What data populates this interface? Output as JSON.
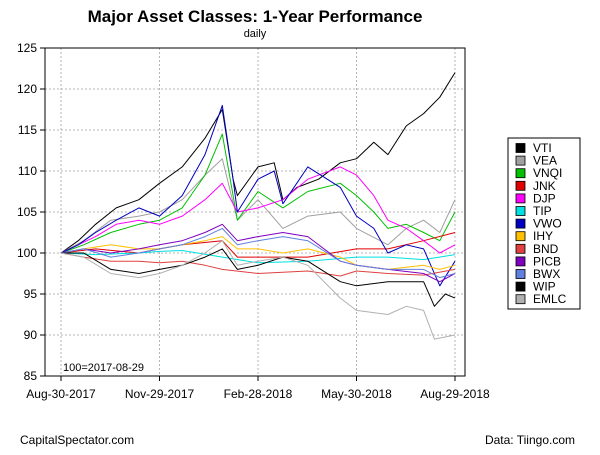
{
  "footer": {
    "left": "CapitalSpectator.com",
    "right": "Data: Tiingo.com"
  },
  "chart_data": {
    "type": "line",
    "title": "Major Asset Classes: 1-Year Performance",
    "subtitle": "daily",
    "annotation": "100=2017-08-29",
    "xlabel": "",
    "ylabel": "",
    "x_tick_labels": [
      "Aug-30-2017",
      "Nov-29-2017",
      "Feb-28-2018",
      "May-30-2018",
      "Aug-29-2018"
    ],
    "x_tick_dates": [
      "2017-08-30",
      "2017-11-29",
      "2018-02-28",
      "2018-05-30",
      "2018-08-29"
    ],
    "x_range": [
      "2017-08-30",
      "2018-08-29"
    ],
    "ylim": [
      85,
      125
    ],
    "y_ticks": [
      85,
      90,
      95,
      100,
      105,
      110,
      115,
      120,
      125
    ],
    "grid": true,
    "legend_position": "right",
    "series": [
      {
        "name": "VTI",
        "color": "#000000",
        "points": [
          [
            "2017-08-30",
            100
          ],
          [
            "2017-09-15",
            101.5
          ],
          [
            "2017-10-01",
            103.5
          ],
          [
            "2017-10-20",
            105.5
          ],
          [
            "2017-11-10",
            106.5
          ],
          [
            "2017-11-29",
            108.5
          ],
          [
            "2017-12-20",
            110.5
          ],
          [
            "2018-01-10",
            114
          ],
          [
            "2018-01-26",
            117.5
          ],
          [
            "2018-02-05",
            109
          ],
          [
            "2018-02-09",
            107
          ],
          [
            "2018-02-28",
            110.5
          ],
          [
            "2018-03-15",
            111
          ],
          [
            "2018-03-23",
            106.5
          ],
          [
            "2018-04-05",
            108
          ],
          [
            "2018-04-25",
            109
          ],
          [
            "2018-05-15",
            111
          ],
          [
            "2018-05-30",
            111.5
          ],
          [
            "2018-06-15",
            113.5
          ],
          [
            "2018-06-28",
            112
          ],
          [
            "2018-07-15",
            115.5
          ],
          [
            "2018-07-31",
            117
          ],
          [
            "2018-08-15",
            119
          ],
          [
            "2018-08-29",
            122
          ]
        ]
      },
      {
        "name": "VEA",
        "color": "#a0a0a0",
        "points": [
          [
            "2017-08-30",
            100
          ],
          [
            "2017-09-20",
            101.5
          ],
          [
            "2017-10-15",
            104
          ],
          [
            "2017-11-10",
            104.5
          ],
          [
            "2017-11-29",
            105
          ],
          [
            "2017-12-20",
            106.5
          ],
          [
            "2018-01-10",
            109.5
          ],
          [
            "2018-01-26",
            111.5
          ],
          [
            "2018-02-09",
            104
          ],
          [
            "2018-02-28",
            106.5
          ],
          [
            "2018-03-23",
            103
          ],
          [
            "2018-04-15",
            104.5
          ],
          [
            "2018-05-15",
            105
          ],
          [
            "2018-05-30",
            103
          ],
          [
            "2018-06-28",
            101
          ],
          [
            "2018-07-15",
            103
          ],
          [
            "2018-07-31",
            104
          ],
          [
            "2018-08-15",
            102.5
          ],
          [
            "2018-08-29",
            106.5
          ]
        ]
      },
      {
        "name": "VNQI",
        "color": "#00c000",
        "points": [
          [
            "2017-08-30",
            100
          ],
          [
            "2017-09-20",
            101
          ],
          [
            "2017-10-15",
            102.5
          ],
          [
            "2017-11-10",
            103.5
          ],
          [
            "2017-11-29",
            104
          ],
          [
            "2017-12-20",
            105.5
          ],
          [
            "2018-01-10",
            109.5
          ],
          [
            "2018-01-26",
            114.5
          ],
          [
            "2018-02-05",
            107
          ],
          [
            "2018-02-09",
            104
          ],
          [
            "2018-02-28",
            107.5
          ],
          [
            "2018-03-23",
            105.5
          ],
          [
            "2018-04-15",
            107.5
          ],
          [
            "2018-05-15",
            108.5
          ],
          [
            "2018-05-30",
            107
          ],
          [
            "2018-06-15",
            105
          ],
          [
            "2018-06-28",
            103
          ],
          [
            "2018-07-15",
            103.5
          ],
          [
            "2018-07-31",
            102.5
          ],
          [
            "2018-08-15",
            101.5
          ],
          [
            "2018-08-29",
            105
          ]
        ]
      },
      {
        "name": "JNK",
        "color": "#e00000",
        "points": [
          [
            "2017-08-30",
            100
          ],
          [
            "2017-10-01",
            100.5
          ],
          [
            "2017-11-10",
            100
          ],
          [
            "2017-11-29",
            100.5
          ],
          [
            "2017-12-20",
            101
          ],
          [
            "2018-01-26",
            101.5
          ],
          [
            "2018-02-09",
            99.5
          ],
          [
            "2018-02-28",
            99.5
          ],
          [
            "2018-04-15",
            99.5
          ],
          [
            "2018-05-30",
            100.5
          ],
          [
            "2018-06-28",
            100.5
          ],
          [
            "2018-07-31",
            101.5
          ],
          [
            "2018-08-29",
            102.5
          ]
        ]
      },
      {
        "name": "DJP",
        "color": "#ff00ff",
        "points": [
          [
            "2017-08-30",
            100
          ],
          [
            "2017-09-15",
            101
          ],
          [
            "2017-10-01",
            102
          ],
          [
            "2017-10-20",
            103.5
          ],
          [
            "2017-11-10",
            104
          ],
          [
            "2017-11-29",
            103.5
          ],
          [
            "2017-12-20",
            104.5
          ],
          [
            "2018-01-10",
            106.5
          ],
          [
            "2018-01-26",
            108.5
          ],
          [
            "2018-02-09",
            105
          ],
          [
            "2018-02-28",
            105.5
          ],
          [
            "2018-03-23",
            106.5
          ],
          [
            "2018-04-15",
            109
          ],
          [
            "2018-05-15",
            110.5
          ],
          [
            "2018-05-30",
            109.5
          ],
          [
            "2018-06-15",
            107
          ],
          [
            "2018-06-28",
            104
          ],
          [
            "2018-07-15",
            103
          ],
          [
            "2018-07-31",
            101.5
          ],
          [
            "2018-08-15",
            100
          ],
          [
            "2018-08-29",
            101
          ]
        ]
      },
      {
        "name": "TIP",
        "color": "#00e0e0",
        "points": [
          [
            "2017-08-30",
            100
          ],
          [
            "2017-10-01",
            99.8
          ],
          [
            "2017-11-10",
            100
          ],
          [
            "2017-11-29",
            100.2
          ],
          [
            "2017-12-20",
            100.3
          ],
          [
            "2018-01-26",
            99.5
          ],
          [
            "2018-02-28",
            98.8
          ],
          [
            "2018-04-15",
            99
          ],
          [
            "2018-05-30",
            99.5
          ],
          [
            "2018-06-28",
            99.5
          ],
          [
            "2018-07-31",
            99.2
          ],
          [
            "2018-08-29",
            99.8
          ]
        ]
      },
      {
        "name": "VWO",
        "color": "#0000c0",
        "points": [
          [
            "2017-08-30",
            100
          ],
          [
            "2017-09-15",
            101
          ],
          [
            "2017-10-01",
            102.5
          ],
          [
            "2017-10-20",
            104
          ],
          [
            "2017-11-10",
            105.5
          ],
          [
            "2017-11-29",
            104.5
          ],
          [
            "2017-12-20",
            107
          ],
          [
            "2018-01-10",
            112
          ],
          [
            "2018-01-26",
            118
          ],
          [
            "2018-02-05",
            109
          ],
          [
            "2018-02-09",
            105
          ],
          [
            "2018-02-28",
            109
          ],
          [
            "2018-03-15",
            110
          ],
          [
            "2018-03-23",
            106
          ],
          [
            "2018-04-15",
            110.5
          ],
          [
            "2018-05-15",
            108
          ],
          [
            "2018-05-30",
            104.5
          ],
          [
            "2018-06-15",
            103
          ],
          [
            "2018-06-28",
            100
          ],
          [
            "2018-07-15",
            101
          ],
          [
            "2018-07-31",
            100.5
          ],
          [
            "2018-08-15",
            96
          ],
          [
            "2018-08-29",
            99
          ]
        ]
      },
      {
        "name": "IHY",
        "color": "#ffc000",
        "points": [
          [
            "2017-08-30",
            100
          ],
          [
            "2017-09-20",
            100.5
          ],
          [
            "2017-10-15",
            101
          ],
          [
            "2017-11-10",
            100.5
          ],
          [
            "2017-11-29",
            100.5
          ],
          [
            "2017-12-20",
            101
          ],
          [
            "2018-01-10",
            101.5
          ],
          [
            "2018-01-26",
            102
          ],
          [
            "2018-02-09",
            100.5
          ],
          [
            "2018-02-28",
            100.5
          ],
          [
            "2018-03-23",
            100
          ],
          [
            "2018-04-15",
            100.5
          ],
          [
            "2018-05-15",
            99.5
          ],
          [
            "2018-05-30",
            98.5
          ],
          [
            "2018-06-28",
            98
          ],
          [
            "2018-07-31",
            98.5
          ],
          [
            "2018-08-15",
            98
          ],
          [
            "2018-08-29",
            98.5
          ]
        ]
      },
      {
        "name": "BND",
        "color": "#e04040",
        "points": [
          [
            "2017-08-30",
            100
          ],
          [
            "2017-09-20",
            99.5
          ],
          [
            "2017-10-15",
            99
          ],
          [
            "2017-11-10",
            99
          ],
          [
            "2017-11-29",
            98.8
          ],
          [
            "2017-12-20",
            99
          ],
          [
            "2018-01-10",
            98.5
          ],
          [
            "2018-01-26",
            98
          ],
          [
            "2018-02-28",
            97.5
          ],
          [
            "2018-04-15",
            97.8
          ],
          [
            "2018-05-15",
            97.2
          ],
          [
            "2018-05-30",
            97.8
          ],
          [
            "2018-06-28",
            97.5
          ],
          [
            "2018-07-31",
            97.3
          ],
          [
            "2018-08-29",
            98
          ]
        ]
      },
      {
        "name": "PICB",
        "color": "#8000c0",
        "points": [
          [
            "2017-08-30",
            100
          ],
          [
            "2017-09-20",
            100.5
          ],
          [
            "2017-10-15",
            100
          ],
          [
            "2017-11-10",
            100.5
          ],
          [
            "2017-11-29",
            101
          ],
          [
            "2017-12-20",
            101.5
          ],
          [
            "2018-01-10",
            102.5
          ],
          [
            "2018-01-26",
            103.5
          ],
          [
            "2018-02-09",
            101.5
          ],
          [
            "2018-02-28",
            102
          ],
          [
            "2018-03-23",
            102.5
          ],
          [
            "2018-04-15",
            102
          ],
          [
            "2018-05-15",
            99
          ],
          [
            "2018-05-30",
            98.5
          ],
          [
            "2018-06-28",
            98
          ],
          [
            "2018-07-31",
            97.5
          ],
          [
            "2018-08-15",
            96.5
          ],
          [
            "2018-08-29",
            97.5
          ]
        ]
      },
      {
        "name": "BWX",
        "color": "#6080e0",
        "points": [
          [
            "2017-08-30",
            100
          ],
          [
            "2017-09-20",
            100.5
          ],
          [
            "2017-10-15",
            99.5
          ],
          [
            "2017-11-10",
            100
          ],
          [
            "2017-11-29",
            100.5
          ],
          [
            "2017-12-20",
            101
          ],
          [
            "2018-01-10",
            102
          ],
          [
            "2018-01-26",
            103
          ],
          [
            "2018-02-09",
            101
          ],
          [
            "2018-02-28",
            101.5
          ],
          [
            "2018-03-23",
            102
          ],
          [
            "2018-04-15",
            101.5
          ],
          [
            "2018-05-15",
            99
          ],
          [
            "2018-05-30",
            98.5
          ],
          [
            "2018-06-28",
            98
          ],
          [
            "2018-07-31",
            98
          ],
          [
            "2018-08-15",
            97
          ],
          [
            "2018-08-29",
            97.5
          ]
        ]
      },
      {
        "name": "WIP",
        "color": "#000000",
        "points": [
          [
            "2017-08-30",
            100
          ],
          [
            "2017-09-20",
            100
          ],
          [
            "2017-10-15",
            98
          ],
          [
            "2017-11-10",
            97.5
          ],
          [
            "2017-11-29",
            98
          ],
          [
            "2017-12-20",
            98.5
          ],
          [
            "2018-01-10",
            99.5
          ],
          [
            "2018-01-26",
            100.5
          ],
          [
            "2018-02-09",
            98
          ],
          [
            "2018-02-28",
            98.5
          ],
          [
            "2018-03-23",
            99.5
          ],
          [
            "2018-04-15",
            99
          ],
          [
            "2018-05-15",
            96.5
          ],
          [
            "2018-05-30",
            96
          ],
          [
            "2018-06-28",
            96.5
          ],
          [
            "2018-07-31",
            96.5
          ],
          [
            "2018-08-10",
            93.5
          ],
          [
            "2018-08-20",
            95
          ],
          [
            "2018-08-29",
            94.5
          ]
        ]
      },
      {
        "name": "EMLC",
        "color": "#b0b0b0",
        "points": [
          [
            "2017-08-30",
            100
          ],
          [
            "2017-09-20",
            99.5
          ],
          [
            "2017-10-15",
            97.5
          ],
          [
            "2017-11-10",
            97
          ],
          [
            "2017-11-29",
            97.5
          ],
          [
            "2017-12-20",
            98.5
          ],
          [
            "2018-01-10",
            100
          ],
          [
            "2018-01-26",
            101.5
          ],
          [
            "2018-02-09",
            98.5
          ],
          [
            "2018-02-28",
            99
          ],
          [
            "2018-03-23",
            99.5
          ],
          [
            "2018-04-15",
            98.5
          ],
          [
            "2018-05-15",
            94.5
          ],
          [
            "2018-05-30",
            93
          ],
          [
            "2018-06-28",
            92.5
          ],
          [
            "2018-07-15",
            93.5
          ],
          [
            "2018-07-31",
            93
          ],
          [
            "2018-08-10",
            89.5
          ],
          [
            "2018-08-29",
            90
          ]
        ]
      }
    ]
  }
}
